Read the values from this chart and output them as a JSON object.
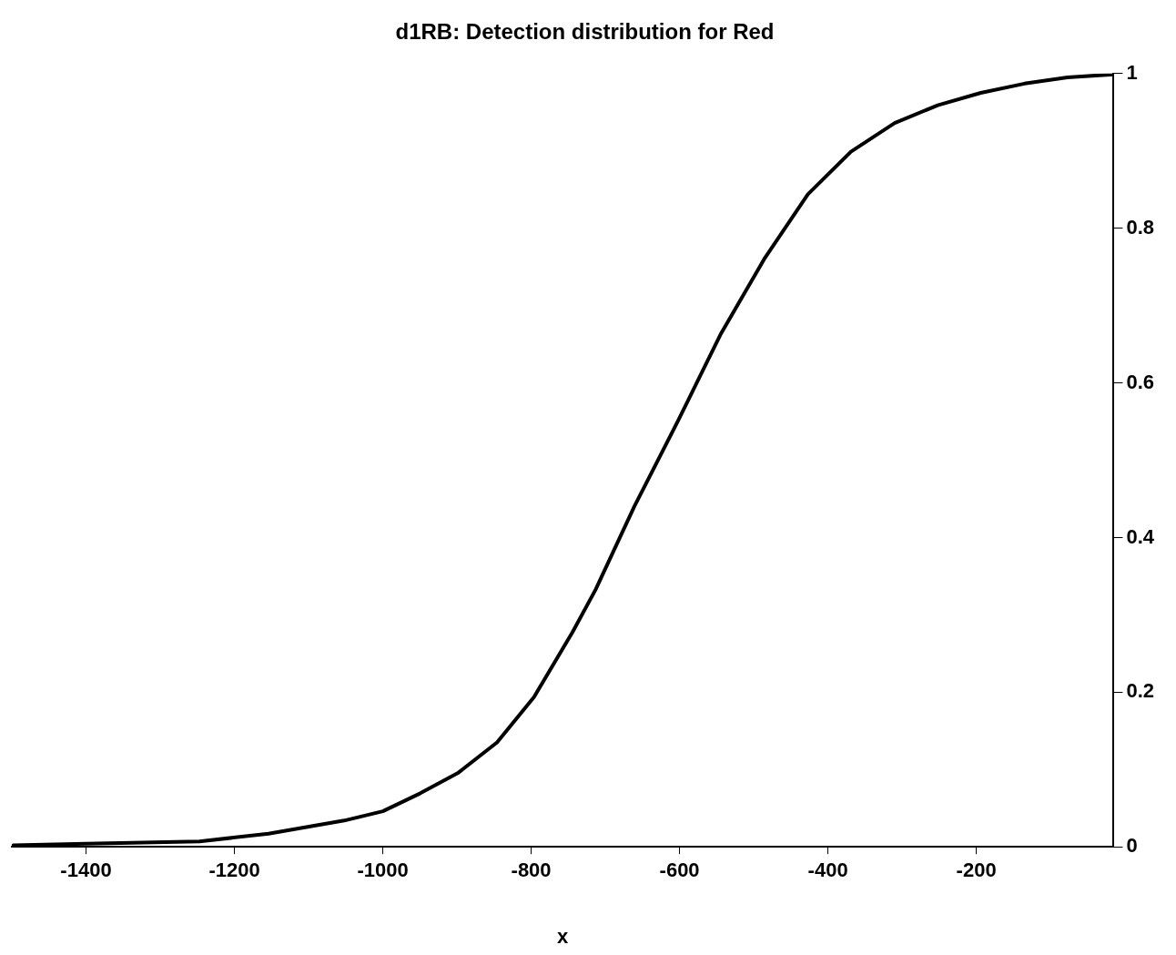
{
  "chart_data": {
    "type": "line",
    "title": "d1RB: Detection distribution for Red",
    "xlabel": "x",
    "x": [
      -1498,
      -1400,
      -1247,
      -1154,
      -1052,
      -1000,
      -950,
      -898,
      -846,
      -796,
      -744,
      -713,
      -661,
      -602,
      -544,
      -486,
      -427,
      -369,
      -310,
      -252,
      -194,
      -135,
      -77,
      -15
    ],
    "series": [
      {
        "color": "#000000",
        "values": [
          0.002,
          0.004,
          0.007,
          0.017,
          0.034,
          0.046,
          0.069,
          0.096,
          0.135,
          0.194,
          0.278,
          0.333,
          0.44,
          0.551,
          0.664,
          0.76,
          0.844,
          0.899,
          0.936,
          0.959,
          0.975,
          0.987,
          0.995,
          0.999
        ]
      }
    ],
    "marker": "none",
    "line_style": "solid",
    "xlim": [
      -1500,
      -15
    ],
    "xticks": [
      -1400,
      -1200,
      -1000,
      -800,
      -600,
      -400,
      -200
    ],
    "ylim": [
      0,
      1
    ],
    "yticks": [
      0,
      0.2,
      0.4,
      0.6,
      0.8,
      1
    ]
  }
}
